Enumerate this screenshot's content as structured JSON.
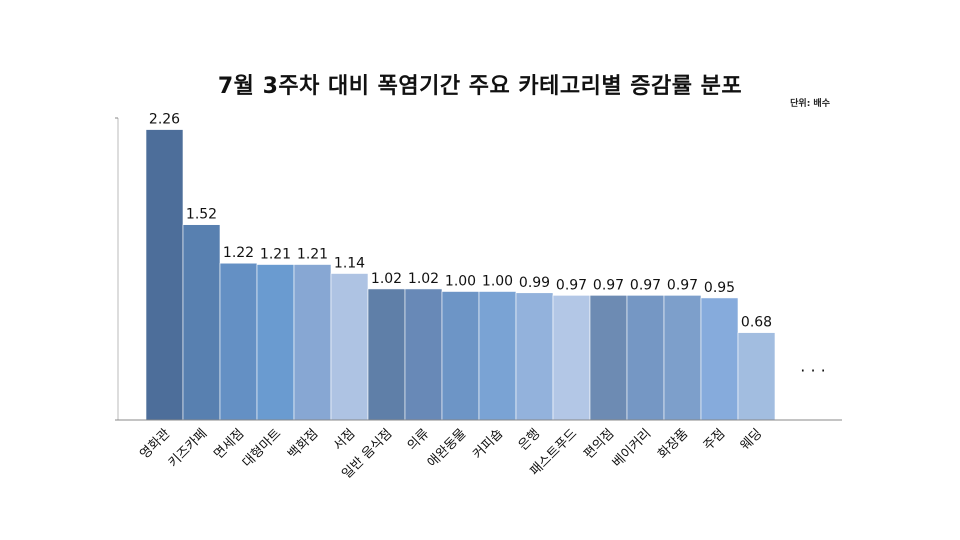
{
  "title": "7월 3주차 대비 폭염기간 주요 카테고리별 증감률 분포",
  "unit": "단위: 배수",
  "ellipsis": "· · ·",
  "chart_data": {
    "type": "bar",
    "title": "7월 3주차 대비 폭염기간 주요 카테고리별 증감률 분포",
    "unit": "단위: 배수",
    "xlabel": "",
    "ylabel": "",
    "ylim": [
      0,
      2.35
    ],
    "grid": false,
    "categories": [
      "영화관",
      "키즈카페",
      "면세점",
      "대형마트",
      "백화점",
      "서점",
      "일반 음식점",
      "의류",
      "애완동물",
      "커피숍",
      "은행",
      "패스트푸드",
      "편의점",
      "베이커리",
      "화장품",
      "주점",
      "웨딩"
    ],
    "values": [
      2.26,
      1.52,
      1.22,
      1.21,
      1.21,
      1.14,
      1.02,
      1.02,
      1.0,
      1.0,
      0.99,
      0.97,
      0.97,
      0.97,
      0.97,
      0.95,
      0.68
    ],
    "labels": [
      "2.26",
      "1.52",
      "1.22",
      "1.21",
      "1.21",
      "1.14",
      "1.02",
      "1.02",
      "1.00",
      "1.00",
      "0.99",
      "0.97",
      "0.97",
      "0.97",
      "0.97",
      "0.95",
      "0.68"
    ],
    "colors": [
      "#4d6e9a",
      "#5880b0",
      "#6490c4",
      "#6a9bd0",
      "#87a7d3",
      "#aec3e3",
      "#5f7fa8",
      "#6889b7",
      "#6d95c6",
      "#7aa3d4",
      "#93b2dc",
      "#b3c7e6",
      "#6d8bb3",
      "#7597c4",
      "#7d9fcb",
      "#86abdc",
      "#a2bde0"
    ]
  }
}
